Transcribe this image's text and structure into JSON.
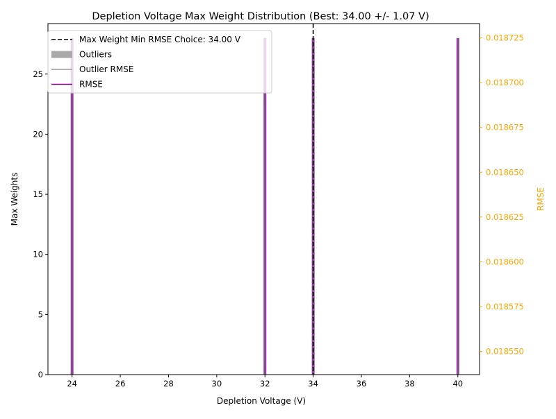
{
  "chart_data": {
    "type": "bar",
    "title": "Depletion Voltage Max Weight Distribution (Best: 34.00 +/- 1.07 V)",
    "xlabel": "Depletion Voltage (V)",
    "ylabel": "Max Weights",
    "y2label": "RMSE",
    "xlim": [
      23.0,
      40.9
    ],
    "ylim": [
      0,
      29.2
    ],
    "y2lim": [
      0.018537,
      0.018733
    ],
    "xticks": [
      "24",
      "26",
      "28",
      "30",
      "32",
      "34",
      "36",
      "38",
      "40"
    ],
    "yticks": [
      "0",
      "5",
      "10",
      "15",
      "20",
      "25"
    ],
    "y2ticks": [
      "0.018550",
      "0.018575",
      "0.018600",
      "0.018625",
      "0.018650",
      "0.018675",
      "0.018700",
      "0.018725"
    ],
    "bars": [
      {
        "x": 24,
        "value": 28,
        "series": "Max Weights"
      },
      {
        "x": 32,
        "value": 28,
        "series": "Max Weights"
      },
      {
        "x": 34,
        "value": 28,
        "series": "Max Weights"
      },
      {
        "x": 40,
        "value": 28,
        "series": "Max Weights"
      }
    ],
    "best_voltage": 34.0,
    "legend": {
      "placement": "top-left",
      "items": [
        {
          "label": "Max Weight Min RMSE Choice: 34.00 V",
          "style": "dashed-line",
          "color": "#000000"
        },
        {
          "label": "Outliers",
          "style": "patch",
          "color": "#a9a9a9"
        },
        {
          "label": "Outlier RMSE",
          "style": "line",
          "color": "#999999"
        },
        {
          "label": "RMSE",
          "style": "line",
          "color": "#800080"
        }
      ]
    },
    "colors": {
      "bars": "#8b3a96",
      "rmse_axis": "#ffa500",
      "best_line": "#000000",
      "axes": "#000000"
    },
    "grid": false
  }
}
